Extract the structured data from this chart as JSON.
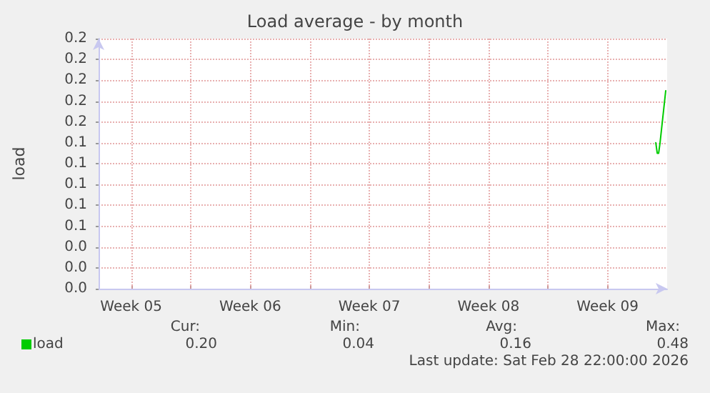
{
  "chart_data": {
    "type": "line",
    "title": "Load average - by month",
    "ylabel": "load",
    "x": [
      "2026-02-28T08:00",
      "2026-02-28T10:00",
      "2026-02-28T12:00",
      "2026-02-28T14:00",
      "2026-02-28T22:00"
    ],
    "series": [
      {
        "name": "load",
        "color": "#00cc00",
        "values": [
          0.14,
          0.13,
          0.13,
          0.14,
          0.19
        ]
      }
    ],
    "xlim": [
      "2026-01-26T14:00",
      "2026-03-01T00:00"
    ],
    "xticks": [
      {
        "value": "2026-01-28T12:00",
        "label": "Week 05"
      },
      {
        "value": "2026-02-04T12:00",
        "label": "Week 06"
      },
      {
        "value": "2026-02-11T12:00",
        "label": "Week 07"
      },
      {
        "value": "2026-02-18T12:00",
        "label": "Week 08"
      },
      {
        "value": "2026-02-25T12:00",
        "label": "Week 09"
      },
      {
        "value": "2026-02-01T00:00",
        "label": null
      },
      {
        "value": "2026-02-08T00:00",
        "label": null
      },
      {
        "value": "2026-02-15T00:00",
        "label": null
      },
      {
        "value": "2026-02-22T00:00",
        "label": null
      }
    ],
    "ylim": [
      0,
      0.24
    ],
    "yticks": [
      {
        "value": 0,
        "label": "0.0"
      },
      {
        "value": 0.02,
        "label": "0.0"
      },
      {
        "value": 0.04,
        "label": "0.0"
      },
      {
        "value": 0.06,
        "label": "0.1"
      },
      {
        "value": 0.08,
        "label": "0.1"
      },
      {
        "value": 0.1,
        "label": "0.1"
      },
      {
        "value": 0.12,
        "label": "0.1"
      },
      {
        "value": 0.14,
        "label": "0.1"
      },
      {
        "value": 0.16,
        "label": "0.2"
      },
      {
        "value": 0.18,
        "label": "0.2"
      },
      {
        "value": 0.2,
        "label": "0.2"
      },
      {
        "value": 0.22,
        "label": "0.2"
      },
      {
        "value": 0.24,
        "label": "0.2"
      }
    ],
    "grid": true,
    "legend": "bottom left",
    "marker": "none",
    "line_style": "solid",
    "annotations": [
      "Cur:",
      "Min:",
      "Avg:",
      "Max:",
      "0.20",
      "0.04",
      "0.16",
      "0.48",
      "Last update: Sat Feb 28 22:00:00 2026"
    ]
  }
}
